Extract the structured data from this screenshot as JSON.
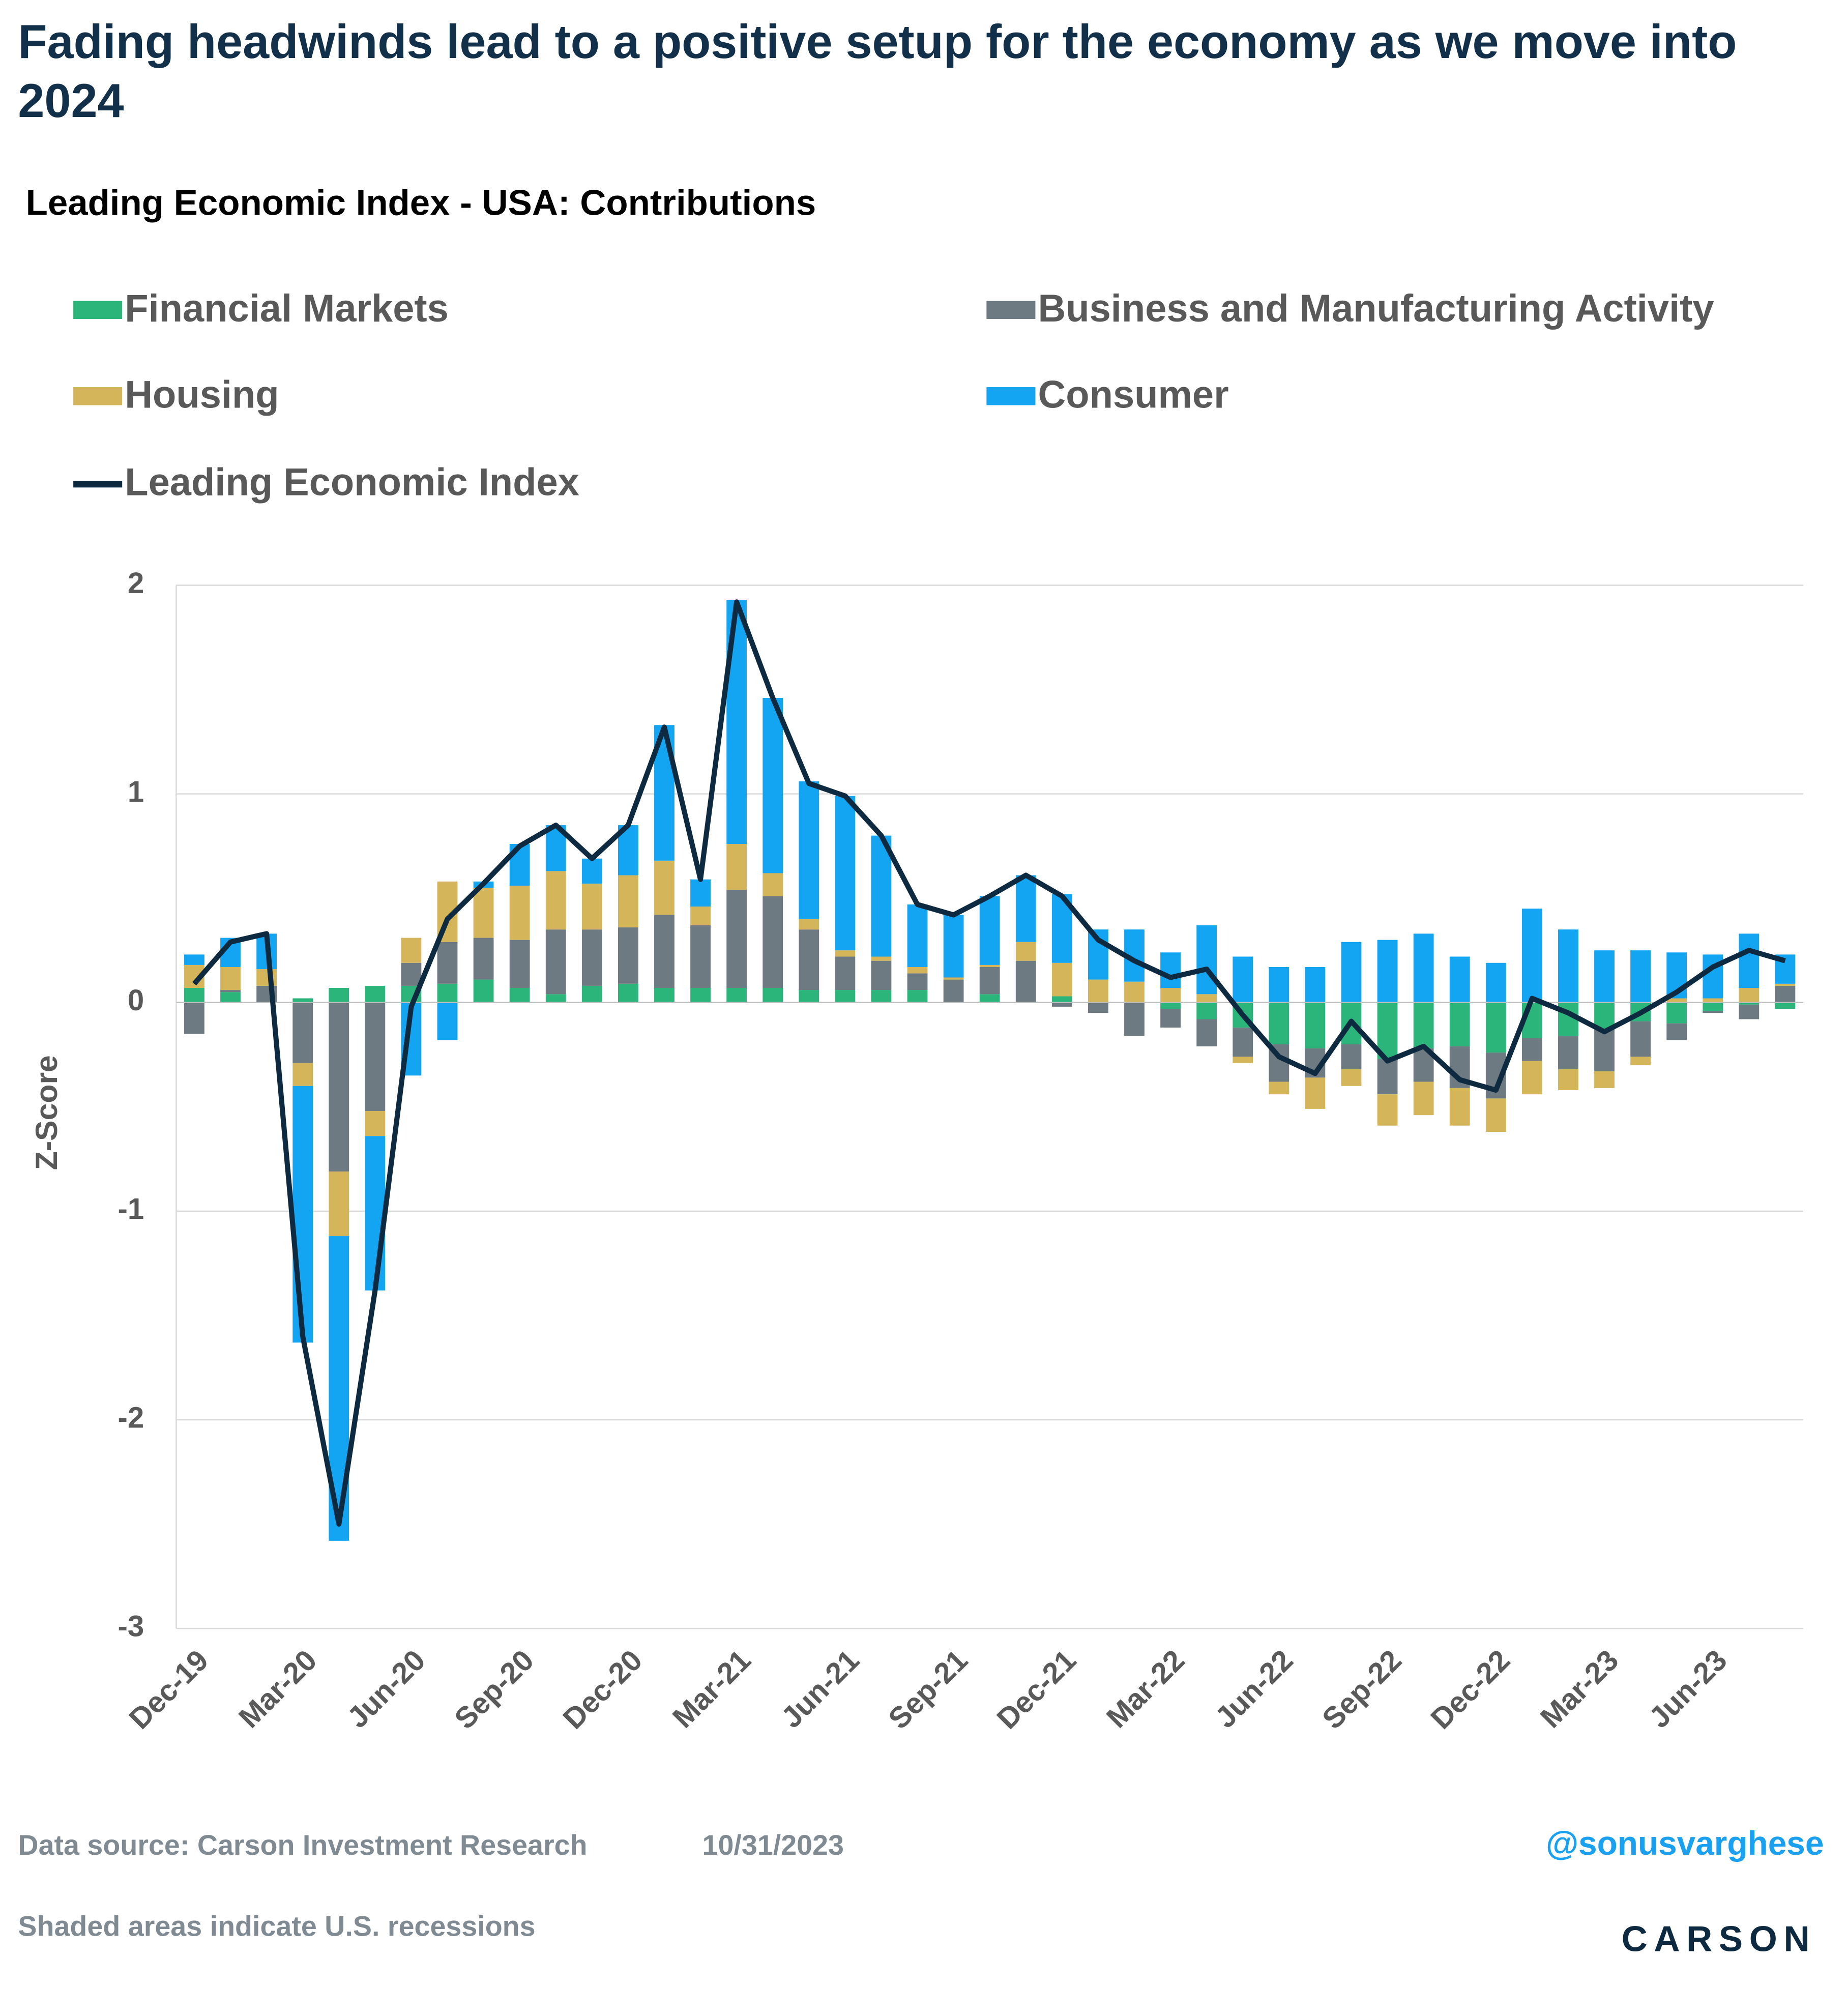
{
  "chart_data": {
    "type": "stacked-bar-line",
    "title": "Fading headwinds lead to a positive setup for the economy as we move into 2024",
    "subtitle": "Leading Economic Index - USA: Contributions",
    "y_label": "Z-Score",
    "categories": [
      "Dec-19",
      null,
      null,
      "Mar-20",
      null,
      null,
      "Jun-20",
      null,
      null,
      "Sep-20",
      null,
      null,
      "Dec-20",
      null,
      null,
      "Mar-21",
      null,
      null,
      "Jun-21",
      null,
      null,
      "Sep-21",
      null,
      null,
      "Dec-21",
      null,
      null,
      "Mar-22",
      null,
      null,
      "Jun-22",
      null,
      null,
      "Sep-22",
      null,
      null,
      "Dec-22",
      null,
      null,
      "Mar-23",
      null,
      null,
      "Jun-23",
      null,
      null
    ],
    "series": [
      {
        "name": "Financial Markets",
        "color": "#2bb57a",
        "values": [
          0.07,
          0.05,
          0.0,
          0.02,
          0.07,
          0.08,
          0.08,
          0.09,
          0.11,
          0.07,
          0.04,
          0.08,
          0.09,
          0.07,
          0.07,
          0.07,
          0.07,
          0.06,
          0.06,
          0.06,
          0.06,
          0.0,
          0.04,
          0.0,
          0.03,
          0.0,
          0.0,
          -0.03,
          -0.08,
          -0.12,
          -0.2,
          -0.22,
          -0.2,
          -0.27,
          -0.22,
          -0.21,
          -0.24,
          -0.17,
          -0.16,
          -0.13,
          -0.09,
          -0.1,
          -0.04,
          -0.01,
          -0.03
        ]
      },
      {
        "name": "Business and Manufacturing Activity",
        "color": "#6d7a82",
        "values": [
          -0.15,
          0.01,
          0.08,
          -0.29,
          -0.81,
          -0.52,
          0.11,
          0.2,
          0.2,
          0.23,
          0.31,
          0.27,
          0.27,
          0.35,
          0.3,
          0.47,
          0.44,
          0.29,
          0.16,
          0.14,
          0.08,
          0.11,
          0.13,
          0.2,
          -0.02,
          -0.05,
          -0.16,
          -0.09,
          -0.13,
          -0.14,
          -0.18,
          -0.14,
          -0.12,
          -0.17,
          -0.16,
          -0.2,
          -0.22,
          -0.11,
          -0.16,
          -0.2,
          -0.17,
          -0.08,
          -0.01,
          -0.07,
          0.08
        ]
      },
      {
        "name": "Housing",
        "color": "#d4b55a",
        "values": [
          0.11,
          0.11,
          0.08,
          -0.11,
          -0.31,
          -0.12,
          0.12,
          0.29,
          0.24,
          0.26,
          0.28,
          0.22,
          0.25,
          0.26,
          0.09,
          0.22,
          0.11,
          0.05,
          0.03,
          0.02,
          0.03,
          0.01,
          0.01,
          0.09,
          0.16,
          0.11,
          0.1,
          0.07,
          0.04,
          -0.03,
          -0.06,
          -0.15,
          -0.08,
          -0.15,
          -0.16,
          -0.18,
          -0.16,
          -0.16,
          -0.1,
          -0.08,
          -0.04,
          0.02,
          0.02,
          0.07,
          0.01
        ]
      },
      {
        "name": "Consumer",
        "color": "#13a4f2",
        "values": [
          0.05,
          0.14,
          0.17,
          -1.23,
          -1.46,
          -0.74,
          -0.35,
          -0.18,
          0.03,
          0.2,
          0.22,
          0.12,
          0.24,
          0.65,
          0.13,
          1.17,
          0.84,
          0.66,
          0.74,
          0.58,
          0.3,
          0.3,
          0.33,
          0.32,
          0.33,
          0.24,
          0.25,
          0.17,
          0.33,
          0.22,
          0.17,
          0.17,
          0.29,
          0.3,
          0.33,
          0.22,
          0.19,
          0.45,
          0.35,
          0.25,
          0.25,
          0.22,
          0.21,
          0.26,
          0.14
        ]
      }
    ],
    "line": {
      "name": "Leading Economic Index",
      "color": "#0e2a40",
      "values": [
        0.09,
        0.29,
        0.33,
        -1.6,
        -2.5,
        -1.38,
        -0.02,
        0.4,
        0.57,
        0.75,
        0.85,
        0.69,
        0.85,
        1.32,
        0.59,
        1.92,
        1.46,
        1.05,
        0.99,
        0.8,
        0.47,
        0.42,
        0.51,
        0.61,
        0.51,
        0.3,
        0.2,
        0.12,
        0.16,
        -0.06,
        -0.26,
        -0.34,
        -0.09,
        -0.28,
        -0.21,
        -0.37,
        -0.42,
        0.02,
        -0.05,
        -0.14,
        -0.05,
        0.05,
        0.17,
        0.25,
        0.2
      ]
    },
    "ylim": [
      -3,
      2
    ],
    "yticks": [
      -3,
      -2,
      -1,
      0,
      1,
      2
    ],
    "grid": true,
    "source": "Data source: Carson Investment Research",
    "date": "10/31/2023",
    "handle": "@sonusvarghese",
    "note": "Shaded areas indicate U.S. recessions",
    "logo": "CARSON"
  }
}
